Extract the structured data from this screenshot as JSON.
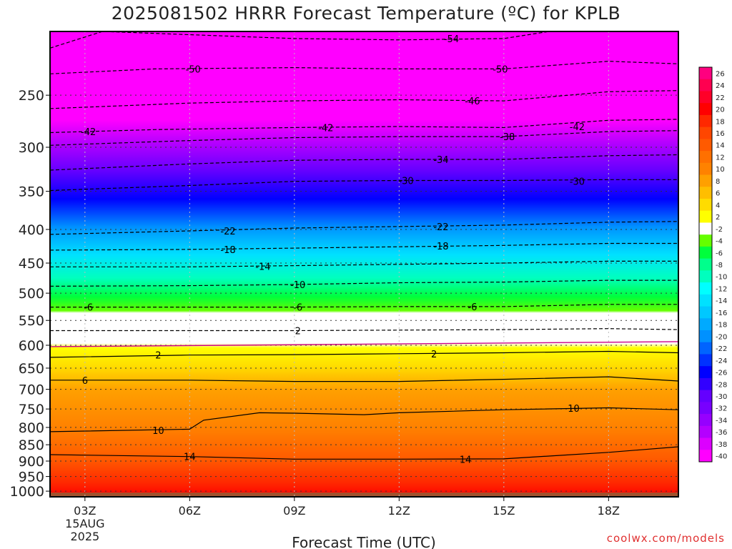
{
  "title": "2025081502 HRRR Forecast Temperature (ºC) for KPLB",
  "credit": "coolwx.com/models",
  "chart_data": {
    "type": "heatmap",
    "title": "2025081502 HRRR Forecast Temperature (ºC) for KPLB",
    "xlabel": "Forecast Time (UTC)",
    "ylabel": "",
    "x_range_hours_utc": [
      2,
      20
    ],
    "y_range_hPa": [
      1020,
      200
    ],
    "y_scale": "log",
    "grid": true,
    "legend": "colorbar right",
    "x_ticks": [
      {
        "hour": 3,
        "lines": [
          "03Z",
          "15AUG",
          "2025"
        ]
      },
      {
        "hour": 6,
        "lines": [
          "06Z"
        ]
      },
      {
        "hour": 9,
        "lines": [
          "09Z"
        ]
      },
      {
        "hour": 12,
        "lines": [
          "12Z"
        ]
      },
      {
        "hour": 15,
        "lines": [
          "15Z"
        ]
      },
      {
        "hour": 18,
        "lines": [
          "18Z"
        ]
      }
    ],
    "y_ticks": [
      "250",
      "300",
      "350",
      "400",
      "450",
      "500",
      "550",
      "600",
      "650",
      "700",
      "750",
      "800",
      "850",
      "900",
      "950",
      "1000"
    ],
    "colorbar_labels": [
      "26",
      "24",
      "22",
      "20",
      "18",
      "16",
      "14",
      "12",
      "10",
      "8",
      "6",
      "4",
      "2",
      "-2",
      "-4",
      "-6",
      "-8",
      "-10",
      "-12",
      "-14",
      "-16",
      "-18",
      "-20",
      "-22",
      "-24",
      "-26",
      "-28",
      "-30",
      "-32",
      "-34",
      "-36",
      "-38",
      "-40"
    ],
    "colorbar_colors": [
      "#ff007f",
      "#ff0050",
      "#ff0028",
      "#ff0000",
      "#ff2800",
      "#ff4600",
      "#ff5a00",
      "#ff7000",
      "#ff8200",
      "#ffa000",
      "#ffbe00",
      "#ffdc00",
      "#ffff00",
      "#ffffff",
      "#64ff00",
      "#00ff3c",
      "#00ff8c",
      "#00ffbe",
      "#00ffff",
      "#00e1ff",
      "#00c8ff",
      "#00aaff",
      "#0091ff",
      "#0064ff",
      "#0032ff",
      "#0000ff",
      "#3200ff",
      "#6400ff",
      "#7800ff",
      "#9600ff",
      "#b400ff",
      "#dc00ff",
      "#ff00ff"
    ],
    "contour_levels": [
      -54,
      -50,
      -46,
      -42,
      -38,
      -34,
      -30,
      -22,
      -18,
      -14,
      -10,
      -6,
      2,
      6,
      10,
      14
    ],
    "contours": [
      {
        "level": -54,
        "style": "dashed",
        "points": [
          [
            2,
            212
          ],
          [
            3.5,
            200
          ],
          [
            9,
            205
          ],
          [
            12,
            206
          ],
          [
            15,
            205
          ],
          [
            16.3,
            200
          ]
        ],
        "labels": [
          [
            13.5,
            205
          ]
        ]
      },
      {
        "level": -50,
        "style": "dashed",
        "points": [
          [
            2,
            232
          ],
          [
            5,
            228
          ],
          [
            9,
            227
          ],
          [
            12,
            228
          ],
          [
            15,
            228
          ],
          [
            18,
            222
          ],
          [
            20,
            224
          ]
        ],
        "labels": [
          [
            6.1,
            228
          ],
          [
            14.9,
            228
          ]
        ]
      },
      {
        "level": -46,
        "style": "dashed",
        "points": [
          [
            2,
            262
          ],
          [
            6,
            257
          ],
          [
            9,
            255
          ],
          [
            12,
            254
          ],
          [
            15,
            255
          ],
          [
            18,
            247
          ],
          [
            20,
            246
          ]
        ],
        "labels": [
          [
            14.1,
            255
          ]
        ]
      },
      {
        "level": -42,
        "style": "dashed",
        "points": [
          [
            2,
            285
          ],
          [
            5,
            282
          ],
          [
            9,
            280
          ],
          [
            12,
            279
          ],
          [
            15,
            280
          ],
          [
            18,
            273
          ],
          [
            20,
            272
          ]
        ],
        "labels": [
          [
            3.1,
            284
          ],
          [
            9.9,
            280
          ],
          [
            17.1,
            279
          ]
        ]
      },
      {
        "level": -38,
        "style": "dashed",
        "points": [
          [
            2,
            298
          ],
          [
            6,
            293
          ],
          [
            9,
            290
          ],
          [
            12,
            289
          ],
          [
            15,
            289
          ],
          [
            18,
            284
          ],
          [
            20,
            283
          ]
        ],
        "labels": [
          [
            15.1,
            289
          ]
        ]
      },
      {
        "level": -34,
        "style": "dashed",
        "points": [
          [
            2,
            325
          ],
          [
            6,
            318
          ],
          [
            9,
            314
          ],
          [
            12,
            313
          ],
          [
            15,
            313
          ],
          [
            18,
            309
          ],
          [
            20,
            308
          ]
        ],
        "labels": [
          [
            13.2,
            313
          ]
        ]
      },
      {
        "level": -30,
        "style": "dashed",
        "points": [
          [
            2,
            349
          ],
          [
            6,
            343
          ],
          [
            9,
            338
          ],
          [
            12,
            337
          ],
          [
            15,
            337
          ],
          [
            18,
            336
          ],
          [
            20,
            336
          ]
        ],
        "labels": [
          [
            12.2,
            337
          ],
          [
            17.1,
            338
          ]
        ]
      },
      {
        "level": -22,
        "style": "dashed",
        "points": [
          [
            2,
            407
          ],
          [
            6,
            402
          ],
          [
            9,
            398
          ],
          [
            12,
            396
          ],
          [
            15,
            394
          ],
          [
            18,
            390
          ],
          [
            20,
            389
          ]
        ],
        "labels": [
          [
            7.1,
            402
          ],
          [
            13.2,
            396
          ]
        ]
      },
      {
        "level": -18,
        "style": "dashed",
        "points": [
          [
            2,
            430
          ],
          [
            6,
            429
          ],
          [
            9,
            427
          ],
          [
            12,
            425
          ],
          [
            15,
            423
          ],
          [
            18,
            420
          ],
          [
            20,
            420
          ]
        ],
        "labels": [
          [
            7.1,
            429
          ],
          [
            13.2,
            424
          ]
        ]
      },
      {
        "level": -14,
        "style": "dashed",
        "points": [
          [
            2,
            456
          ],
          [
            6,
            456
          ],
          [
            9,
            454
          ],
          [
            12,
            452
          ],
          [
            15,
            450
          ],
          [
            18,
            447
          ],
          [
            20,
            447
          ]
        ],
        "labels": [
          [
            8.1,
            455
          ]
        ]
      },
      {
        "level": -10,
        "style": "dashed",
        "points": [
          [
            2,
            488
          ],
          [
            6,
            487
          ],
          [
            9,
            485
          ],
          [
            12,
            482
          ],
          [
            15,
            481
          ],
          [
            18,
            478
          ],
          [
            20,
            478
          ]
        ],
        "labels": [
          [
            9.1,
            485
          ]
        ]
      },
      {
        "level": -6,
        "style": "dashed",
        "points": [
          [
            2,
            525
          ],
          [
            6,
            525
          ],
          [
            9,
            525
          ],
          [
            12,
            524
          ],
          [
            15,
            524
          ],
          [
            18,
            520
          ],
          [
            20,
            520
          ]
        ],
        "labels": [
          [
            3.1,
            525
          ],
          [
            9.1,
            525
          ],
          [
            14.1,
            524
          ]
        ]
      },
      {
        "level": 2,
        "style": "dashed",
        "points": [
          [
            2,
            570
          ],
          [
            6,
            570
          ],
          [
            9,
            570
          ],
          [
            12,
            569
          ],
          [
            15,
            568
          ],
          [
            18,
            566
          ],
          [
            20,
            568
          ]
        ],
        "labels": [
          [
            9.1,
            570
          ]
        ]
      },
      {
        "level": 2,
        "style": "solid",
        "points": [
          [
            2,
            626
          ],
          [
            6,
            621
          ],
          [
            9,
            620
          ],
          [
            12,
            618
          ],
          [
            15,
            616
          ],
          [
            18,
            613
          ],
          [
            20,
            616
          ]
        ],
        "labels": [
          [
            5.1,
            621
          ],
          [
            13.0,
            618
          ]
        ]
      },
      {
        "level": 6,
        "style": "solid",
        "points": [
          [
            2,
            678
          ],
          [
            6,
            678
          ],
          [
            9,
            681
          ],
          [
            12,
            681
          ],
          [
            15,
            676
          ],
          [
            18,
            670
          ],
          [
            20,
            680
          ]
        ],
        "labels": [
          [
            3.0,
            678
          ]
        ]
      },
      {
        "level": 10,
        "style": "solid",
        "points": [
          [
            2,
            812
          ],
          [
            6,
            805
          ],
          [
            6.4,
            780
          ],
          [
            8,
            760
          ],
          [
            9,
            761
          ],
          [
            11,
            765
          ],
          [
            12,
            760
          ],
          [
            15,
            752
          ],
          [
            18,
            747
          ],
          [
            20,
            752
          ]
        ],
        "labels": [
          [
            5.1,
            808
          ],
          [
            17.0,
            748
          ]
        ]
      },
      {
        "level": 14,
        "style": "solid",
        "points": [
          [
            2,
            880
          ],
          [
            6,
            886
          ],
          [
            9,
            894
          ],
          [
            12,
            894
          ],
          [
            15,
            893
          ],
          [
            18,
            873
          ],
          [
            20,
            856
          ]
        ],
        "labels": [
          [
            6.0,
            886
          ],
          [
            13.9,
            894
          ]
        ]
      }
    ],
    "surface_reference": {
      "level": 0,
      "style": "solid",
      "color": "#cc0088",
      "pressure_hPa": 597
    }
  }
}
